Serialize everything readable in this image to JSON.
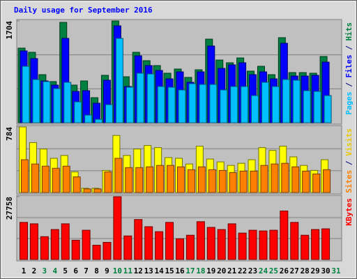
{
  "title": "Daily usage for September 2016",
  "categories": [
    "1",
    "2",
    "3",
    "4",
    "5",
    "6",
    "7",
    "8",
    "9",
    "10",
    "11",
    "12",
    "13",
    "14",
    "15",
    "16",
    "17",
    "18",
    "19",
    "20",
    "21",
    "22",
    "23",
    "24",
    "25",
    "26",
    "27",
    "28",
    "29",
    "30",
    "31"
  ],
  "highlighted_indices": [
    2,
    3,
    9,
    10,
    16,
    17,
    23,
    24,
    30
  ],
  "highlight_color": "#008040",
  "legend_separator": " / ",
  "chart_data": [
    {
      "type": "bar",
      "ylim": [
        0,
        1704
      ],
      "yticks": [
        1704
      ],
      "grid_lines": [
        568,
        1136
      ],
      "series": [
        {
          "name": "Hits",
          "color": "#008040",
          "values": [
            1249,
            1179,
            805,
            689,
            1680,
            630,
            700,
            420,
            794,
            1704,
            770,
            1179,
            1039,
            957,
            829,
            899,
            759,
            887,
            1400,
            1050,
            1004,
            1085,
            864,
            945,
            805,
            1424,
            840,
            840,
            829,
            1109,
            null
          ]
        },
        {
          "name": "Files",
          "color": "#0000ff",
          "values": [
            1202,
            1074,
            700,
            630,
            1412,
            525,
            537,
            327,
            712,
            1622,
            607,
            1120,
            957,
            875,
            735,
            852,
            677,
            852,
            1284,
            910,
            969,
            1004,
            805,
            852,
            735,
            1330,
            782,
            782,
            794,
            1015,
            null
          ]
        },
        {
          "name": "Pages",
          "color": "#00c0ff",
          "values": [
            945,
            724,
            689,
            572,
            677,
            350,
            128,
            58,
            303,
            1412,
            595,
            829,
            817,
            607,
            595,
            549,
            654,
            642,
            642,
            549,
            607,
            607,
            455,
            677,
            607,
            724,
            712,
            537,
            525,
            455,
            null
          ]
        }
      ]
    },
    {
      "type": "bar",
      "ylim": [
        0,
        784
      ],
      "yticks": [
        784
      ],
      "grid_lines": [
        261,
        523
      ],
      "series": [
        {
          "name": "Visits",
          "color": "#ffff00",
          "values": [
            784,
            597,
            520,
            409,
            443,
            247,
            51,
            51,
            264,
            682,
            443,
            520,
            562,
            537,
            418,
            409,
            341,
            554,
            400,
            366,
            324,
            349,
            392,
            537,
            503,
            554,
            426,
            324,
            264,
            392,
            null
          ]
        },
        {
          "name": "Sites",
          "color": "#ff8000",
          "values": [
            392,
            341,
            315,
            290,
            315,
            187,
            43,
            43,
            247,
            409,
            298,
            298,
            307,
            324,
            324,
            307,
            273,
            307,
            273,
            264,
            239,
            256,
            256,
            324,
            341,
            349,
            307,
            256,
            222,
            273,
            null
          ]
        }
      ]
    },
    {
      "type": "bar",
      "ylim": [
        0,
        27758
      ],
      "yticks": [
        27758
      ],
      "grid_lines": [
        9253,
        18505
      ],
      "series": [
        {
          "name": "KBytes",
          "color": "#ff0000",
          "values": [
            16402,
            15770,
            10093,
            13247,
            15770,
            8516,
            12932,
            6308,
            7570,
            27758,
            10408,
            17663,
            14509,
            12301,
            16402,
            9147,
            10724,
            16717,
            14193,
            13247,
            15770,
            11670,
            12932,
            12616,
            12932,
            21448,
            16402,
            10724,
            13247,
            13562,
            null
          ]
        }
      ]
    }
  ]
}
